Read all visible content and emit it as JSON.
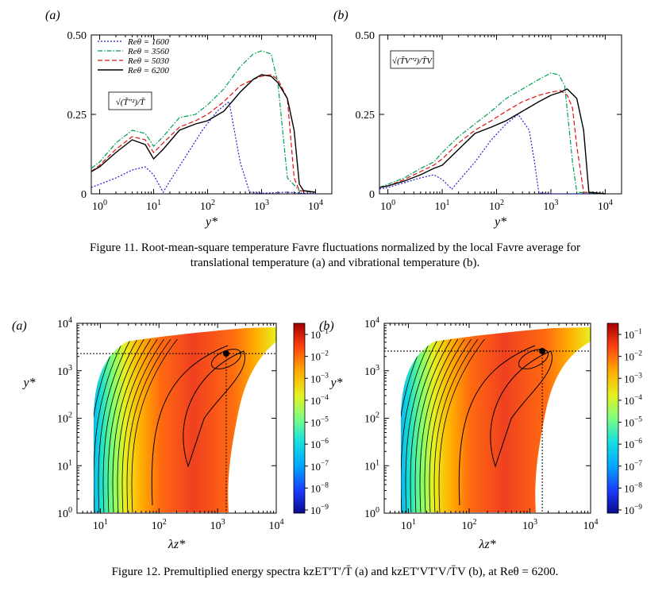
{
  "colors": {
    "re1600": "#2222cc",
    "re3560": "#00a050",
    "re5030": "#dd1111",
    "re6200": "#000000"
  },
  "figure11": {
    "caption_line1": "Figure   11.  Root-mean-square temperature Favre fluctuations normalized by the local Favre average for",
    "caption_line2": "translational temperature (a) and vibrational temperature (b).",
    "chart_data": [
      {
        "type": "line",
        "panel_label": "(a)",
        "inset_label": "√(T̃″²)/T̃",
        "xlabel": "y*",
        "x_scale": "log",
        "xlim": [
          0.7,
          20000
        ],
        "ylim": [
          0,
          0.5
        ],
        "yticks": [
          "0",
          "0.25",
          "0.50"
        ],
        "xticks": [
          "10^0",
          "10^1",
          "10^2",
          "10^3",
          "10^4"
        ],
        "legend_position": "top-left",
        "series": [
          {
            "name": "Reθ = 1600",
            "style": "dotted",
            "color": "#2222cc",
            "x": [
              0.7,
              1,
              2,
              4,
              7,
              10,
              15,
              20,
              40,
              80,
              150,
              250,
              400,
              600,
              1000,
              3000,
              10000
            ],
            "y": [
              0.02,
              0.03,
              0.05,
              0.075,
              0.085,
              0.06,
              0.005,
              0.04,
              0.12,
              0.2,
              0.26,
              0.29,
              0.1,
              0.005,
              0.002,
              0.005,
              0.0
            ]
          },
          {
            "name": "Reθ = 3560",
            "style": "dash-dot",
            "color": "#00a050",
            "x": [
              0.7,
              1,
              2,
              4,
              7,
              10,
              15,
              30,
              60,
              100,
              200,
              400,
              700,
              1000,
              1500,
              2000,
              3000,
              5000,
              10000
            ],
            "y": [
              0.08,
              0.1,
              0.16,
              0.2,
              0.19,
              0.15,
              0.18,
              0.24,
              0.25,
              0.28,
              0.33,
              0.4,
              0.44,
              0.45,
              0.44,
              0.35,
              0.05,
              0.01,
              0.005
            ]
          },
          {
            "name": "Reθ = 5030",
            "style": "dashed",
            "color": "#dd1111",
            "x": [
              0.7,
              1,
              2,
              4,
              7,
              10,
              15,
              30,
              60,
              100,
              200,
              400,
              700,
              1000,
              1500,
              2000,
              3000,
              4000,
              5000,
              10000
            ],
            "y": [
              0.07,
              0.09,
              0.14,
              0.18,
              0.17,
              0.13,
              0.16,
              0.21,
              0.23,
              0.25,
              0.29,
              0.34,
              0.36,
              0.37,
              0.375,
              0.36,
              0.3,
              0.05,
              0.01,
              0.005
            ]
          },
          {
            "name": "Reθ = 6200",
            "style": "solid",
            "color": "#000000",
            "x": [
              0.7,
              1,
              2,
              4,
              7,
              10,
              15,
              30,
              60,
              100,
              200,
              400,
              700,
              1000,
              1500,
              2000,
              3000,
              4000,
              5000,
              6000,
              10000
            ],
            "y": [
              0.07,
              0.085,
              0.13,
              0.17,
              0.155,
              0.11,
              0.14,
              0.2,
              0.22,
              0.23,
              0.26,
              0.32,
              0.36,
              0.375,
              0.37,
              0.35,
              0.3,
              0.2,
              0.03,
              0.01,
              0.005
            ]
          }
        ]
      },
      {
        "type": "line",
        "panel_label": "(b)",
        "inset_label": "√(T̃V″²)/T̃V",
        "xlabel": "y*",
        "x_scale": "log",
        "xlim": [
          0.7,
          20000
        ],
        "ylim": [
          0,
          0.5
        ],
        "yticks": [
          "0",
          "0.25",
          "0.50"
        ],
        "xticks": [
          "10^0",
          "10^1",
          "10^2",
          "10^3",
          "10^4"
        ],
        "series": [
          {
            "name": "Reθ = 1600",
            "style": "dotted",
            "color": "#2222cc",
            "x": [
              0.7,
              1,
              2,
              4,
              7,
              10,
              15,
              20,
              40,
              80,
              150,
              250,
              400,
              500,
              600,
              1000,
              10000
            ],
            "y": [
              0.015,
              0.02,
              0.035,
              0.05,
              0.06,
              0.045,
              0.015,
              0.04,
              0.1,
              0.17,
              0.22,
              0.25,
              0.2,
              0.1,
              0.003,
              0.0,
              0.0
            ]
          },
          {
            "name": "Reθ = 3560",
            "style": "dash-dot",
            "color": "#00a050",
            "x": [
              0.7,
              1,
              2,
              4,
              7,
              10,
              20,
              40,
              80,
              150,
              300,
              600,
              1000,
              1400,
              1800,
              2500,
              3000,
              10000
            ],
            "y": [
              0.02,
              0.03,
              0.05,
              0.08,
              0.1,
              0.13,
              0.18,
              0.22,
              0.26,
              0.3,
              0.33,
              0.36,
              0.38,
              0.375,
              0.34,
              0.1,
              0.005,
              0.0
            ]
          },
          {
            "name": "Reθ = 5030",
            "style": "dashed",
            "color": "#dd1111",
            "x": [
              0.7,
              1,
              2,
              4,
              7,
              10,
              20,
              40,
              80,
              150,
              300,
              600,
              1000,
              1500,
              2000,
              2500,
              3000,
              4000,
              10000
            ],
            "y": [
              0.02,
              0.025,
              0.045,
              0.07,
              0.09,
              0.11,
              0.16,
              0.2,
              0.23,
              0.26,
              0.29,
              0.31,
              0.32,
              0.325,
              0.31,
              0.27,
              0.15,
              0.005,
              0.0
            ]
          },
          {
            "name": "Reθ = 6200",
            "style": "solid",
            "color": "#000000",
            "x": [
              0.7,
              1,
              2,
              4,
              7,
              10,
              20,
              40,
              80,
              150,
              300,
              600,
              1000,
              1500,
              2000,
              3000,
              4000,
              5000,
              10000
            ],
            "y": [
              0.02,
              0.025,
              0.04,
              0.06,
              0.08,
              0.09,
              0.14,
              0.19,
              0.21,
              0.23,
              0.26,
              0.29,
              0.31,
              0.32,
              0.33,
              0.3,
              0.2,
              0.005,
              0.0
            ]
          }
        ]
      }
    ]
  },
  "figure12": {
    "caption": "Figure  12.  Premultiplied energy spectra kzET′T′/T̄ (a) and kzET′VT′V/T̄V (b), at Reθ = 6200.",
    "chart_data": [
      {
        "type": "heatmap",
        "panel_label": "(a)",
        "xlabel": "λz*",
        "ylabel": "y*",
        "x_scale": "log",
        "y_scale": "log",
        "xlim": [
          4,
          10000
        ],
        "ylim": [
          1,
          10000
        ],
        "xticks": [
          "10^1",
          "10^2",
          "10^3",
          "10^4"
        ],
        "yticks": [
          "10^0",
          "10^1",
          "10^2",
          "10^3",
          "10^4"
        ],
        "peak_marker": {
          "x": 1400,
          "y": 2300
        },
        "colorbar_ticks": [
          "10^-1",
          "10^-2",
          "10^-3",
          "10^-4",
          "10^-5",
          "10^-6",
          "10^-7",
          "10^-8",
          "10^-9"
        ]
      },
      {
        "type": "heatmap",
        "panel_label": "(b)",
        "xlabel": "λz*",
        "ylabel": "y*",
        "x_scale": "log",
        "y_scale": "log",
        "xlim": [
          4,
          10000
        ],
        "ylim": [
          1,
          10000
        ],
        "xticks": [
          "10^1",
          "10^2",
          "10^3",
          "10^4"
        ],
        "yticks": [
          "10^0",
          "10^1",
          "10^2",
          "10^3",
          "10^4"
        ],
        "peak_marker": {
          "x": 1600,
          "y": 2600
        },
        "colorbar_ticks": [
          "10^-1",
          "10^-2",
          "10^-3",
          "10^-4",
          "10^-5",
          "10^-6",
          "10^-7",
          "10^-8",
          "10^-9"
        ]
      }
    ]
  }
}
